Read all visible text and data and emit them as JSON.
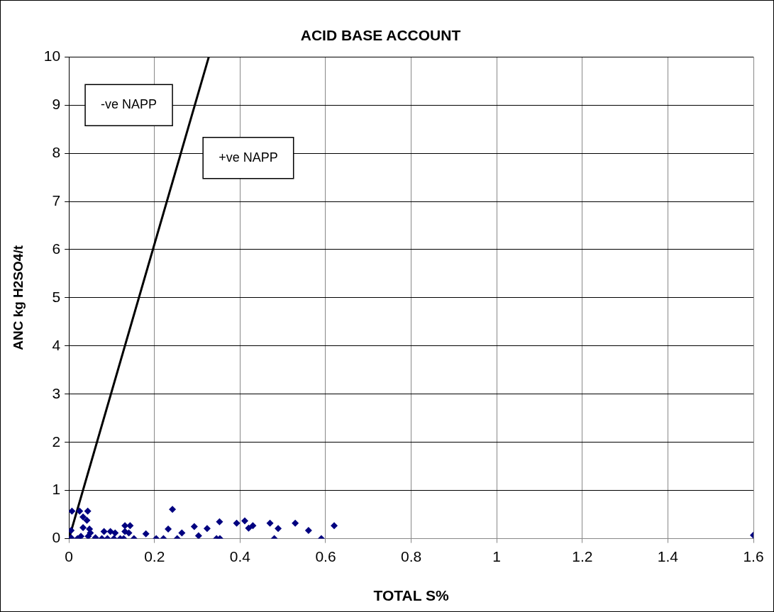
{
  "chart_data": {
    "type": "scatter",
    "title": "ACID BASE ACCOUNT",
    "xlabel": "TOTAL S%",
    "ylabel": "ANC kg H2SO4/t",
    "xlim": [
      0,
      1.6
    ],
    "xticks": [
      0,
      0.2,
      0.4,
      0.6,
      0.8,
      1,
      1.2,
      1.4,
      1.6
    ],
    "ylim": [
      0,
      10
    ],
    "yticks": [
      0,
      1,
      2,
      3,
      4,
      5,
      6,
      7,
      8,
      9,
      10
    ],
    "grid": true,
    "legend": false,
    "marker": "diamond",
    "annotations": [
      "-ve NAPP",
      "+ve NAPP"
    ],
    "series": [
      {
        "type": "scatter",
        "color": "#000080",
        "x": [
          0.007,
          0.025,
          0.044,
          0.033,
          0.042,
          0.005,
          0.033,
          0.048,
          0.005,
          0.02,
          0.028,
          0.045,
          0.05,
          0.062,
          0.082,
          0.077,
          0.097,
          0.09,
          0.108,
          0.105,
          0.12,
          0.131,
          0.143,
          0.131,
          0.14,
          0.128,
          0.152,
          0.18,
          0.204,
          0.221,
          0.232,
          0.242,
          0.253,
          0.264,
          0.293,
          0.303,
          0.323,
          0.345,
          0.353,
          0.352,
          0.392,
          0.411,
          0.42,
          0.43,
          0.47,
          0.48,
          0.489,
          0.529,
          0.56,
          0.59,
          0.62,
          1.6
        ],
        "values": [
          0.57,
          0.57,
          0.57,
          0.45,
          0.38,
          0.17,
          0.23,
          0.2,
          0.02,
          0,
          0.05,
          0.05,
          0.12,
          0.02,
          0.15,
          0,
          0.15,
          0,
          0.12,
          0,
          0,
          0.27,
          0.27,
          0.15,
          0.12,
          0,
          0,
          0.1,
          0,
          0,
          0.2,
          0.61,
          0,
          0.12,
          0.25,
          0.06,
          0.21,
          0,
          0,
          0.35,
          0.32,
          0.37,
          0.22,
          0.27,
          0.32,
          0,
          0.21,
          0.32,
          0.17,
          0,
          0.27,
          0.07
        ]
      },
      {
        "type": "line",
        "color": "#000000",
        "marker": "none",
        "x": [
          0,
          0.327
        ],
        "values": [
          0,
          10
        ]
      }
    ]
  }
}
